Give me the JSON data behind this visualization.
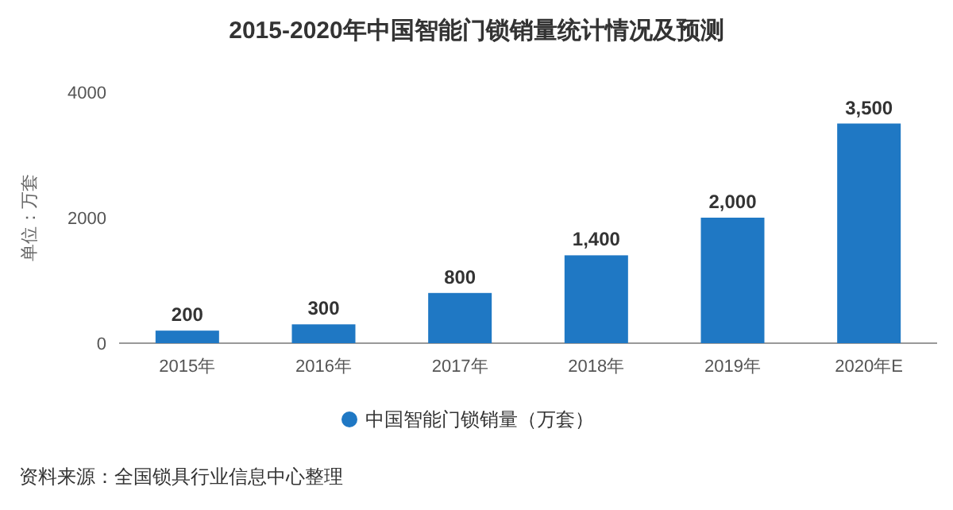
{
  "chart_data": {
    "type": "bar",
    "title": "2015-2020年中国智能门锁销量统计情况及预测",
    "ylabel": "单位：万套",
    "categories": [
      "2015年",
      "2016年",
      "2017年",
      "2018年",
      "2019年",
      "2020年E"
    ],
    "series": [
      {
        "name": "中国智能门锁销量（万套）",
        "color": "#1f78c4",
        "values": [
          200,
          300,
          800,
          1400,
          2000,
          3500
        ],
        "value_labels": [
          "200",
          "300",
          "800",
          "1,400",
          "2,000",
          "3,500"
        ]
      }
    ],
    "ylim": [
      0,
      4000
    ],
    "yticks": [
      0,
      2000,
      4000
    ],
    "legend": "bottom",
    "annotations": [
      "资料来源：全国锁具行业信息中心整理"
    ]
  }
}
